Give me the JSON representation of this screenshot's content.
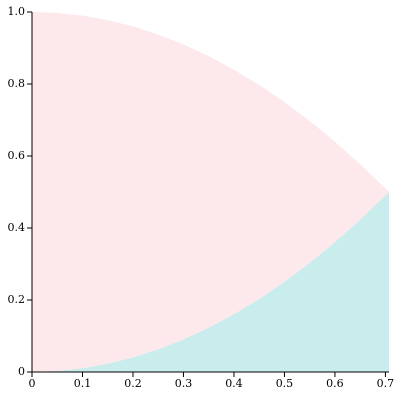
{
  "chart_data": {
    "type": "area",
    "x": [
      0,
      0.05,
      0.1,
      0.15,
      0.2,
      0.25,
      0.3,
      0.35,
      0.4,
      0.45,
      0.5,
      0.55,
      0.6,
      0.65,
      0.7,
      0.7071
    ],
    "series": [
      {
        "color": "#fde9ec",
        "values": [
          1,
          0.9975,
          0.99,
          0.9775,
          0.96,
          0.9375,
          0.91,
          0.8775,
          0.84,
          0.7975,
          0.75,
          0.6975,
          0.64,
          0.5775,
          0.51,
          0.5
        ]
      },
      {
        "color": "#c9ecec",
        "values": [
          0,
          0.0025,
          0.01,
          0.0225,
          0.04,
          0.0625,
          0.09,
          0.1225,
          0.16,
          0.2025,
          0.25,
          0.3025,
          0.36,
          0.4225,
          0.49,
          0.5
        ]
      }
    ],
    "xlim": [
      0,
      0.7071
    ],
    "ylim": [
      0,
      1
    ],
    "xticks": [
      0,
      0.1,
      0.2,
      0.3,
      0.4,
      0.5,
      0.6,
      0.7
    ],
    "yticks": [
      0,
      0.2,
      0.4,
      0.6,
      0.8,
      {
        "value": 1,
        "label": "1.0"
      }
    ]
  }
}
